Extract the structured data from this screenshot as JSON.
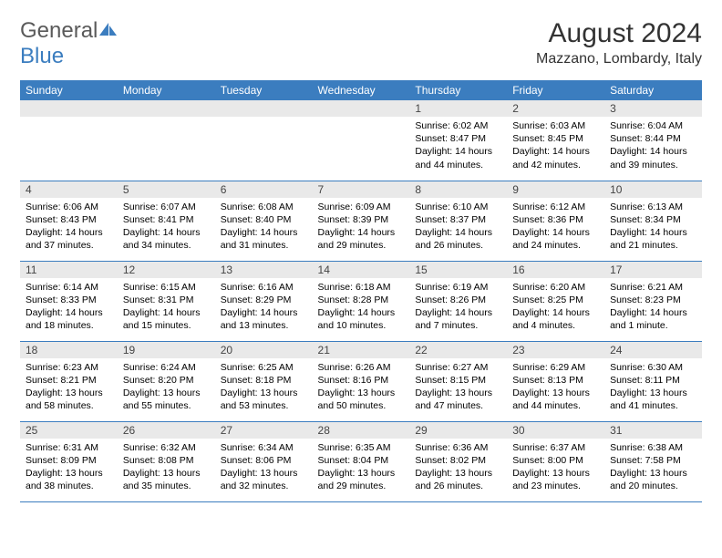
{
  "brand": {
    "part1": "General",
    "part2": "Blue"
  },
  "logo": {
    "fill": "#3b7dbf"
  },
  "header": {
    "month_title": "August 2024",
    "location": "Mazzano, Lombardy, Italy"
  },
  "colors": {
    "header_bg": "#3b7dbf",
    "header_text": "#ffffff",
    "daynum_bg": "#e9e9e9",
    "cell_border": "#3b7dbf",
    "body_text": "#000000"
  },
  "typography": {
    "title_fontsize": 30,
    "location_fontsize": 16,
    "dow_fontsize": 12,
    "cell_fontsize": 10.5
  },
  "days_of_week": [
    "Sunday",
    "Monday",
    "Tuesday",
    "Wednesday",
    "Thursday",
    "Friday",
    "Saturday"
  ],
  "calendar": {
    "leading_blanks": 4,
    "days": [
      {
        "n": "1",
        "sunrise": "6:02 AM",
        "sunset": "8:47 PM",
        "daylight": "14 hours and 44 minutes."
      },
      {
        "n": "2",
        "sunrise": "6:03 AM",
        "sunset": "8:45 PM",
        "daylight": "14 hours and 42 minutes."
      },
      {
        "n": "3",
        "sunrise": "6:04 AM",
        "sunset": "8:44 PM",
        "daylight": "14 hours and 39 minutes."
      },
      {
        "n": "4",
        "sunrise": "6:06 AM",
        "sunset": "8:43 PM",
        "daylight": "14 hours and 37 minutes."
      },
      {
        "n": "5",
        "sunrise": "6:07 AM",
        "sunset": "8:41 PM",
        "daylight": "14 hours and 34 minutes."
      },
      {
        "n": "6",
        "sunrise": "6:08 AM",
        "sunset": "8:40 PM",
        "daylight": "14 hours and 31 minutes."
      },
      {
        "n": "7",
        "sunrise": "6:09 AM",
        "sunset": "8:39 PM",
        "daylight": "14 hours and 29 minutes."
      },
      {
        "n": "8",
        "sunrise": "6:10 AM",
        "sunset": "8:37 PM",
        "daylight": "14 hours and 26 minutes."
      },
      {
        "n": "9",
        "sunrise": "6:12 AM",
        "sunset": "8:36 PM",
        "daylight": "14 hours and 24 minutes."
      },
      {
        "n": "10",
        "sunrise": "6:13 AM",
        "sunset": "8:34 PM",
        "daylight": "14 hours and 21 minutes."
      },
      {
        "n": "11",
        "sunrise": "6:14 AM",
        "sunset": "8:33 PM",
        "daylight": "14 hours and 18 minutes."
      },
      {
        "n": "12",
        "sunrise": "6:15 AM",
        "sunset": "8:31 PM",
        "daylight": "14 hours and 15 minutes."
      },
      {
        "n": "13",
        "sunrise": "6:16 AM",
        "sunset": "8:29 PM",
        "daylight": "14 hours and 13 minutes."
      },
      {
        "n": "14",
        "sunrise": "6:18 AM",
        "sunset": "8:28 PM",
        "daylight": "14 hours and 10 minutes."
      },
      {
        "n": "15",
        "sunrise": "6:19 AM",
        "sunset": "8:26 PM",
        "daylight": "14 hours and 7 minutes."
      },
      {
        "n": "16",
        "sunrise": "6:20 AM",
        "sunset": "8:25 PM",
        "daylight": "14 hours and 4 minutes."
      },
      {
        "n": "17",
        "sunrise": "6:21 AM",
        "sunset": "8:23 PM",
        "daylight": "14 hours and 1 minute."
      },
      {
        "n": "18",
        "sunrise": "6:23 AM",
        "sunset": "8:21 PM",
        "daylight": "13 hours and 58 minutes."
      },
      {
        "n": "19",
        "sunrise": "6:24 AM",
        "sunset": "8:20 PM",
        "daylight": "13 hours and 55 minutes."
      },
      {
        "n": "20",
        "sunrise": "6:25 AM",
        "sunset": "8:18 PM",
        "daylight": "13 hours and 53 minutes."
      },
      {
        "n": "21",
        "sunrise": "6:26 AM",
        "sunset": "8:16 PM",
        "daylight": "13 hours and 50 minutes."
      },
      {
        "n": "22",
        "sunrise": "6:27 AM",
        "sunset": "8:15 PM",
        "daylight": "13 hours and 47 minutes."
      },
      {
        "n": "23",
        "sunrise": "6:29 AM",
        "sunset": "8:13 PM",
        "daylight": "13 hours and 44 minutes."
      },
      {
        "n": "24",
        "sunrise": "6:30 AM",
        "sunset": "8:11 PM",
        "daylight": "13 hours and 41 minutes."
      },
      {
        "n": "25",
        "sunrise": "6:31 AM",
        "sunset": "8:09 PM",
        "daylight": "13 hours and 38 minutes."
      },
      {
        "n": "26",
        "sunrise": "6:32 AM",
        "sunset": "8:08 PM",
        "daylight": "13 hours and 35 minutes."
      },
      {
        "n": "27",
        "sunrise": "6:34 AM",
        "sunset": "8:06 PM",
        "daylight": "13 hours and 32 minutes."
      },
      {
        "n": "28",
        "sunrise": "6:35 AM",
        "sunset": "8:04 PM",
        "daylight": "13 hours and 29 minutes."
      },
      {
        "n": "29",
        "sunrise": "6:36 AM",
        "sunset": "8:02 PM",
        "daylight": "13 hours and 26 minutes."
      },
      {
        "n": "30",
        "sunrise": "6:37 AM",
        "sunset": "8:00 PM",
        "daylight": "13 hours and 23 minutes."
      },
      {
        "n": "31",
        "sunrise": "6:38 AM",
        "sunset": "7:58 PM",
        "daylight": "13 hours and 20 minutes."
      }
    ]
  },
  "labels": {
    "sunrise_prefix": "Sunrise: ",
    "sunset_prefix": "Sunset: ",
    "daylight_prefix": "Daylight: "
  }
}
